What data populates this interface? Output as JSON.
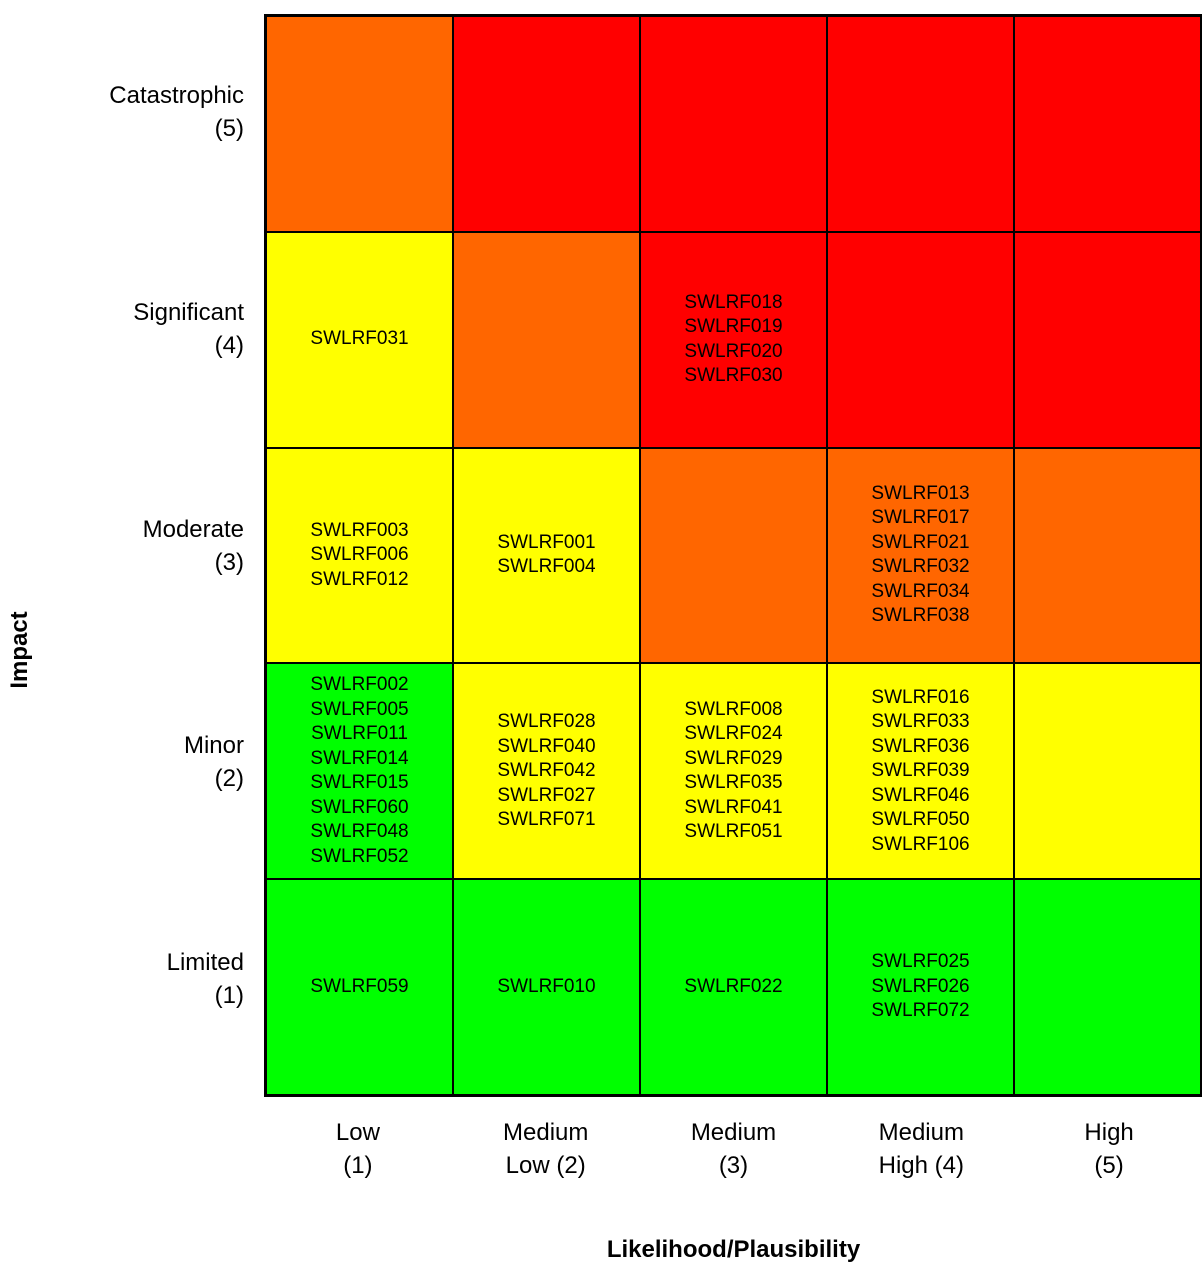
{
  "chart_data": {
    "type": "heatmap",
    "xlabel": "Likelihood/Plausibility",
    "ylabel": "Impact",
    "x_categories": [
      {
        "line1": "Low",
        "line2": "(1)"
      },
      {
        "line1": "Medium",
        "line2": "Low (2)"
      },
      {
        "line1": "Medium",
        "line2": "(3)"
      },
      {
        "line1": "Medium",
        "line2": "High (4)"
      },
      {
        "line1": "High",
        "line2": "(5)"
      }
    ],
    "y_categories": [
      {
        "line1": "Catastrophic",
        "line2": "(5)"
      },
      {
        "line1": "Significant",
        "line2": "(4)"
      },
      {
        "line1": "Moderate",
        "line2": "(3)"
      },
      {
        "line1": "Minor",
        "line2": "(2)"
      },
      {
        "line1": "Limited",
        "line2": "(1)"
      }
    ],
    "colors": {
      "green": "#00ff00",
      "yellow": "#ffff00",
      "orange": "#ff6600",
      "red": "#ff0000"
    },
    "cells": [
      [
        {
          "color": "orange",
          "items": []
        },
        {
          "color": "red",
          "items": []
        },
        {
          "color": "red",
          "items": []
        },
        {
          "color": "red",
          "items": []
        },
        {
          "color": "red",
          "items": []
        }
      ],
      [
        {
          "color": "yellow",
          "items": [
            "SWLRF031"
          ]
        },
        {
          "color": "orange",
          "items": []
        },
        {
          "color": "red",
          "items": [
            "SWLRF018",
            "SWLRF019",
            "SWLRF020",
            "SWLRF030"
          ]
        },
        {
          "color": "red",
          "items": []
        },
        {
          "color": "red",
          "items": []
        }
      ],
      [
        {
          "color": "yellow",
          "items": [
            "SWLRF003",
            "SWLRF006",
            "SWLRF012"
          ]
        },
        {
          "color": "yellow",
          "items": [
            "SWLRF001",
            "SWLRF004"
          ]
        },
        {
          "color": "orange",
          "items": []
        },
        {
          "color": "orange",
          "items": [
            "SWLRF013",
            "SWLRF017",
            "SWLRF021",
            "SWLRF032",
            "SWLRF034",
            "SWLRF038"
          ]
        },
        {
          "color": "orange",
          "items": []
        }
      ],
      [
        {
          "color": "green",
          "items": [
            "SWLRF002",
            "SWLRF005",
            "SWLRF011",
            "SWLRF014",
            "SWLRF015",
            "SWLRF060",
            "SWLRF048",
            "SWLRF052"
          ]
        },
        {
          "color": "yellow",
          "items": [
            "SWLRF028",
            "SWLRF040",
            "SWLRF042",
            "SWLRF027",
            "SWLRF071"
          ]
        },
        {
          "color": "yellow",
          "items": [
            "SWLRF008",
            "SWLRF024",
            "SWLRF029",
            "SWLRF035",
            "SWLRF041",
            "SWLRF051"
          ]
        },
        {
          "color": "yellow",
          "items": [
            "SWLRF016",
            "SWLRF033",
            "SWLRF036",
            "SWLRF039",
            "SWLRF046",
            "SWLRF050",
            "SWLRF106"
          ]
        },
        {
          "color": "yellow",
          "items": []
        }
      ],
      [
        {
          "color": "green",
          "items": [
            "SWLRF059"
          ]
        },
        {
          "color": "green",
          "items": [
            "SWLRF010"
          ]
        },
        {
          "color": "green",
          "items": [
            "SWLRF022"
          ]
        },
        {
          "color": "green",
          "items": [
            "SWLRF025",
            "SWLRF026",
            "SWLRF072"
          ]
        },
        {
          "color": "green",
          "items": []
        }
      ]
    ]
  }
}
